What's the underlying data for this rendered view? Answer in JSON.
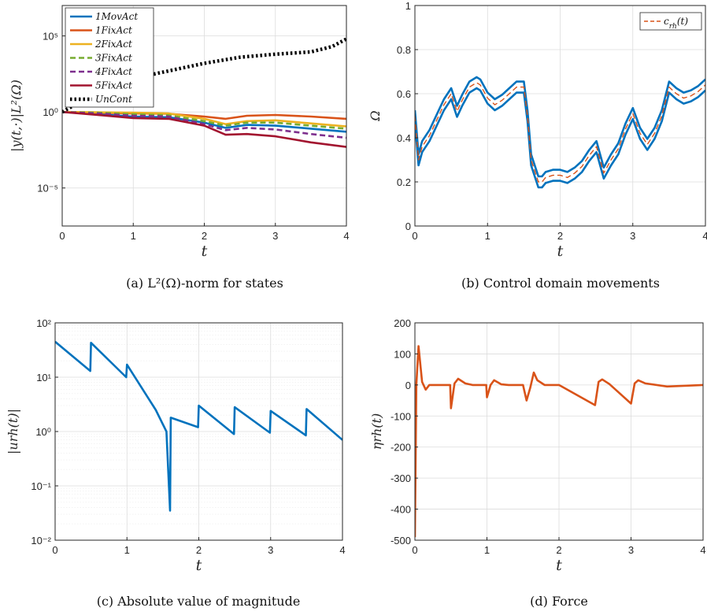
{
  "chart_data": [
    {
      "type": "line",
      "caption": "(a)  L²(Ω)-norm for states",
      "xlabel": "t",
      "ylabel": "|y(t,·)|L²(Ω)",
      "x_ticks": [
        "0",
        "1",
        "2",
        "3",
        "4"
      ],
      "y_ticks": [
        "10⁻⁵",
        "10⁰",
        "10⁵"
      ],
      "y_scale": "log",
      "xlim": [
        0,
        4
      ],
      "ylim_log10": [
        -7.5,
        7
      ],
      "grid": true,
      "legend_position": "top-left",
      "series": [
        {
          "name": "1MovAct",
          "color": "#0072BD",
          "dash": "solid",
          "x": [
            0,
            0.5,
            1,
            1.5,
            2,
            2.3,
            2.6,
            3,
            3.5,
            4
          ],
          "log10y": [
            0,
            -0.15,
            -0.3,
            -0.35,
            -0.7,
            -1.05,
            -0.85,
            -0.9,
            -1.1,
            -1.3
          ]
        },
        {
          "name": "1FixAct",
          "color": "#D95319",
          "dash": "solid",
          "x": [
            0,
            0.5,
            1,
            1.5,
            2,
            2.3,
            2.6,
            3,
            3.5,
            4
          ],
          "log10y": [
            0,
            -0.05,
            -0.1,
            -0.12,
            -0.3,
            -0.45,
            -0.25,
            -0.2,
            -0.3,
            -0.45
          ]
        },
        {
          "name": "2FixAct",
          "color": "#EDB120",
          "dash": "solid",
          "x": [
            0,
            0.5,
            1,
            1.5,
            2,
            2.3,
            2.6,
            3,
            3.5,
            4
          ],
          "log10y": [
            0,
            -0.02,
            -0.05,
            -0.1,
            -0.45,
            -0.8,
            -0.6,
            -0.55,
            -0.75,
            -0.95
          ]
        },
        {
          "name": "3FixAct",
          "color": "#77AC30",
          "dash": "dashed",
          "x": [
            0,
            0.5,
            1,
            1.5,
            2,
            2.3,
            2.6,
            3,
            3.5,
            4
          ],
          "log10y": [
            0,
            -0.05,
            -0.15,
            -0.22,
            -0.6,
            -0.9,
            -0.7,
            -0.7,
            -0.9,
            -1.1
          ]
        },
        {
          "name": "4FixAct",
          "color": "#7E2F8E",
          "dash": "dashed",
          "x": [
            0,
            0.5,
            1,
            1.5,
            2,
            2.3,
            2.6,
            3,
            3.5,
            4
          ],
          "log10y": [
            0,
            -0.1,
            -0.25,
            -0.3,
            -0.8,
            -1.2,
            -1.05,
            -1.15,
            -1.45,
            -1.7
          ]
        },
        {
          "name": "5FixAct",
          "color": "#A2142F",
          "dash": "solid",
          "x": [
            0,
            0.5,
            1,
            1.5,
            2,
            2.3,
            2.6,
            3,
            3.5,
            4
          ],
          "log10y": [
            0,
            -0.2,
            -0.4,
            -0.45,
            -0.9,
            -1.5,
            -1.45,
            -1.6,
            -2.0,
            -2.3
          ]
        },
        {
          "name": "UnCont",
          "color": "#000000",
          "dash": "dotted",
          "x": [
            0,
            0.3,
            0.6,
            1,
            1.5,
            2,
            2.5,
            3,
            3.5,
            3.8,
            4
          ],
          "log10y": [
            0,
            0.8,
            1.5,
            2.2,
            2.7,
            3.2,
            3.6,
            3.8,
            3.95,
            4.3,
            4.8
          ]
        }
      ]
    },
    {
      "type": "line",
      "caption": "(b)  Control domain movements",
      "xlabel": "t",
      "ylabel": "Ω",
      "x_ticks": [
        "0",
        "1",
        "2",
        "3",
        "4"
      ],
      "y_ticks": [
        "0",
        "0.2",
        "0.4",
        "0.6",
        "0.8",
        "1"
      ],
      "xlim": [
        0,
        4
      ],
      "ylim": [
        0,
        1
      ],
      "grid": true,
      "legend_position": "top-right",
      "band_halfwidth": 0.025,
      "series": [
        {
          "name": "c_rh(t)",
          "legend_label": "c",
          "legend_sub": "rh",
          "legend_suffix": "(t)",
          "color": "#D95319",
          "dash": "dashed",
          "x": [
            0,
            0.05,
            0.1,
            0.2,
            0.3,
            0.4,
            0.5,
            0.58,
            0.65,
            0.75,
            0.85,
            0.9,
            1.0,
            1.1,
            1.2,
            1.3,
            1.4,
            1.5,
            1.55,
            1.6,
            1.7,
            1.75,
            1.8,
            1.9,
            2.0,
            2.1,
            2.2,
            2.3,
            2.4,
            2.5,
            2.6,
            2.7,
            2.8,
            2.9,
            3.0,
            3.1,
            3.2,
            3.3,
            3.4,
            3.5,
            3.6,
            3.7,
            3.8,
            3.9,
            4.0
          ],
          "y": [
            0.5,
            0.3,
            0.36,
            0.41,
            0.48,
            0.55,
            0.6,
            0.52,
            0.57,
            0.63,
            0.65,
            0.64,
            0.58,
            0.55,
            0.57,
            0.6,
            0.63,
            0.63,
            0.5,
            0.3,
            0.2,
            0.2,
            0.22,
            0.23,
            0.23,
            0.22,
            0.24,
            0.27,
            0.32,
            0.36,
            0.24,
            0.3,
            0.35,
            0.44,
            0.51,
            0.42,
            0.37,
            0.42,
            0.5,
            0.63,
            0.6,
            0.58,
            0.59,
            0.61,
            0.64
          ]
        }
      ]
    },
    {
      "type": "line",
      "caption": "(c)  Absolute value of magnitude",
      "xlabel": "t",
      "ylabel": "|urh(t)|",
      "x_ticks": [
        "0",
        "1",
        "2",
        "3",
        "4"
      ],
      "y_ticks": [
        "10⁻²",
        "10⁻¹",
        "10⁰",
        "10¹",
        "10²"
      ],
      "y_scale": "log",
      "xlim": [
        0,
        4
      ],
      "ylim_log10": [
        -2,
        2
      ],
      "grid": true,
      "series": [
        {
          "name": "|u_rh(t)|",
          "color": "#0072BD",
          "dash": "solid",
          "x": [
            0,
            0.49,
            0.5,
            0.99,
            1.0,
            1.4,
            1.55,
            1.6,
            1.61,
            1.99,
            2.0,
            2.49,
            2.5,
            2.99,
            3.0,
            3.49,
            3.5,
            4.0
          ],
          "y": [
            45,
            13,
            43,
            10,
            17,
            2.5,
            1.0,
            0.035,
            1.8,
            1.2,
            3.0,
            0.9,
            2.8,
            0.95,
            2.4,
            0.85,
            2.6,
            0.7
          ]
        }
      ]
    },
    {
      "type": "line",
      "caption": "(d)  Force",
      "xlabel": "t",
      "ylabel": "ηrh(t)",
      "x_ticks": [
        "0",
        "1",
        "2",
        "3",
        "4"
      ],
      "y_ticks": [
        "-500",
        "-400",
        "-300",
        "-200",
        "-100",
        "0",
        "100",
        "200"
      ],
      "xlim": [
        0,
        4
      ],
      "ylim": [
        -500,
        200
      ],
      "grid": true,
      "series": [
        {
          "name": "η_rh(t)",
          "color": "#D95319",
          "dash": "solid",
          "x": [
            0,
            0.02,
            0.05,
            0.1,
            0.15,
            0.2,
            0.3,
            0.49,
            0.5,
            0.55,
            0.6,
            0.7,
            0.8,
            0.99,
            1.0,
            1.05,
            1.1,
            1.2,
            1.3,
            1.5,
            1.55,
            1.6,
            1.65,
            1.7,
            1.8,
            2.0,
            2.5,
            2.55,
            2.6,
            2.7,
            3.0,
            3.05,
            3.1,
            3.2,
            3.5,
            4.0
          ],
          "y": [
            -490,
            0,
            125,
            10,
            -15,
            0,
            0,
            0,
            -75,
            5,
            20,
            5,
            0,
            0,
            -40,
            0,
            15,
            2,
            0,
            0,
            -50,
            -10,
            40,
            15,
            0,
            0,
            -65,
            10,
            18,
            3,
            -60,
            5,
            15,
            5,
            -5,
            0
          ]
        }
      ]
    }
  ]
}
